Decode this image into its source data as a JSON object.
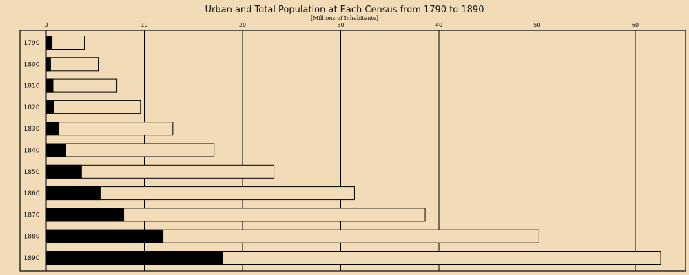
{
  "chart_data": {
    "type": "bar",
    "orientation": "horizontal",
    "stacked": false,
    "title": "Urban and Total Population at Each Census from 1790 to 1890",
    "subtitle": "[Millions of Inhabitants]",
    "categories": [
      "1790",
      "1800",
      "1810",
      "1820",
      "1830",
      "1840",
      "1850",
      "1860",
      "1870",
      "1880",
      "1890"
    ],
    "series": [
      {
        "key": "urban",
        "values": [
          0.6,
          0.45,
          0.7,
          0.8,
          1.3,
          2.0,
          3.6,
          5.5,
          7.9,
          11.9,
          18.0
        ],
        "color": "#000000"
      },
      {
        "key": "total",
        "values": [
          3.9,
          5.3,
          7.2,
          9.6,
          12.9,
          17.1,
          23.2,
          31.4,
          38.6,
          50.2,
          62.6
        ],
        "color": "#f2dcb7"
      }
    ],
    "xlim": [
      0,
      65
    ],
    "xticks": [
      0,
      10,
      20,
      30,
      40,
      50,
      60
    ],
    "xtick_labels": [
      "0",
      "10",
      "20",
      "30",
      "40",
      "50",
      "60"
    ],
    "grid": true,
    "legend": "none",
    "colors": {
      "background": "#f2dcb7",
      "ink": "#000000"
    }
  }
}
